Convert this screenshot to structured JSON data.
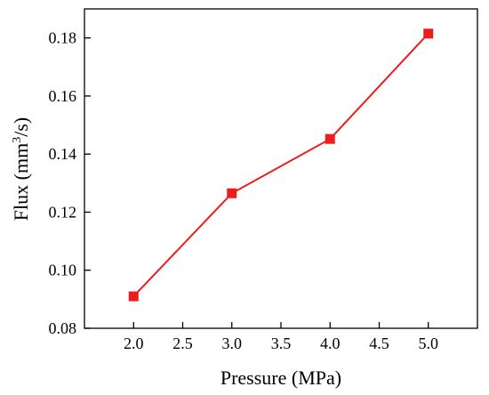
{
  "chart_data": {
    "type": "line",
    "xlabel": "Pressure (MPa)",
    "ylabel_main": "Flux (mm",
    "ylabel_sup": "3",
    "ylabel_tail": "/s)",
    "xlim": [
      1.5,
      5.5
    ],
    "ylim": [
      0.08,
      0.19
    ],
    "xticks": [
      "2.0",
      "2.5",
      "3.0",
      "3.5",
      "4.0",
      "4.5",
      "5.0"
    ],
    "xtick_values": [
      2.0,
      2.5,
      3.0,
      3.5,
      4.0,
      4.5,
      5.0
    ],
    "yticks": [
      "0.08",
      "0.10",
      "0.12",
      "0.14",
      "0.16",
      "0.18"
    ],
    "ytick_values": [
      0.08,
      0.1,
      0.12,
      0.14,
      0.16,
      0.18
    ],
    "series": [
      {
        "x": [
          2.0,
          3.0,
          4.0,
          5.0
        ],
        "values": [
          0.091,
          0.1265,
          0.1452,
          0.1815
        ],
        "color": "#ee1c1c",
        "marker": "square"
      }
    ],
    "grid": false,
    "legend": "none"
  }
}
